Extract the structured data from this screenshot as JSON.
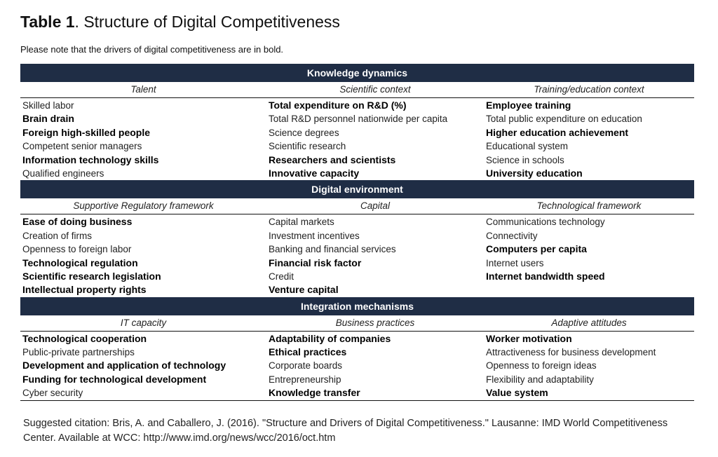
{
  "title": {
    "number": "Table 1",
    "text": ". Structure of Digital Competitiveness"
  },
  "note": "Please note that the drivers of digital competitiveness are in bold.",
  "sections": [
    {
      "heading": "Knowledge dynamics",
      "columns": [
        {
          "header": "Talent",
          "items": [
            {
              "text": "Skilled labor",
              "bold": false
            },
            {
              "text": "Brain drain",
              "bold": true
            },
            {
              "text": "Foreign high-skilled people",
              "bold": true
            },
            {
              "text": "Competent senior managers",
              "bold": false
            },
            {
              "text": "Information technology skills",
              "bold": true
            },
            {
              "text": "Qualified engineers",
              "bold": false
            }
          ]
        },
        {
          "header": "Scientific context",
          "items": [
            {
              "text": "Total expenditure on R&D (%)",
              "bold": true
            },
            {
              "text": "Total R&D personnel nationwide per capita",
              "bold": false
            },
            {
              "text": "Science degrees",
              "bold": false
            },
            {
              "text": "Scientific research",
              "bold": false
            },
            {
              "text": "Researchers and scientists",
              "bold": true
            },
            {
              "text": "Innovative capacity",
              "bold": true
            }
          ]
        },
        {
          "header": "Training/education context",
          "items": [
            {
              "text": "Employee training",
              "bold": true
            },
            {
              "text": "Total public expenditure on education",
              "bold": false
            },
            {
              "text": "Higher education achievement",
              "bold": true
            },
            {
              "text": "Educational system",
              "bold": false
            },
            {
              "text": "Science in schools",
              "bold": false
            },
            {
              "text": "University education",
              "bold": true
            }
          ]
        }
      ]
    },
    {
      "heading": "Digital environment",
      "columns": [
        {
          "header": "Supportive Regulatory framework",
          "items": [
            {
              "text": "Ease of doing business",
              "bold": true
            },
            {
              "text": "Creation of firms",
              "bold": false
            },
            {
              "text": "Openness to foreign labor",
              "bold": false
            },
            {
              "text": "Technological regulation",
              "bold": true
            },
            {
              "text": "Scientific research legislation",
              "bold": true
            },
            {
              "text": "Intellectual property rights",
              "bold": true
            }
          ]
        },
        {
          "header": "Capital",
          "items": [
            {
              "text": "Capital markets",
              "bold": false
            },
            {
              "text": "Investment incentives",
              "bold": false
            },
            {
              "text": "Banking and financial services",
              "bold": false
            },
            {
              "text": "Financial risk factor",
              "bold": true
            },
            {
              "text": "Credit",
              "bold": false
            },
            {
              "text": "Venture capital",
              "bold": true
            }
          ]
        },
        {
          "header": "Technological framework",
          "items": [
            {
              "text": "Communications technology",
              "bold": false
            },
            {
              "text": "Connectivity",
              "bold": false
            },
            {
              "text": "Computers per capita",
              "bold": true
            },
            {
              "text": "Internet users",
              "bold": false
            },
            {
              "text": "Internet bandwidth speed",
              "bold": true
            },
            {
              "text": "",
              "bold": false
            }
          ]
        }
      ]
    },
    {
      "heading": "Integration mechanisms",
      "columns": [
        {
          "header": "IT capacity",
          "items": [
            {
              "text": "Technological cooperation",
              "bold": true
            },
            {
              "text": "Public-private partnerships",
              "bold": false
            },
            {
              "text": "Development and application of technology",
              "bold": true
            },
            {
              "text": "Funding for technological development",
              "bold": true
            },
            {
              "text": "Cyber security",
              "bold": false
            }
          ]
        },
        {
          "header": "Business practices",
          "items": [
            {
              "text": "Adaptability of companies",
              "bold": true
            },
            {
              "text": "Ethical practices",
              "bold": true
            },
            {
              "text": "Corporate boards",
              "bold": false
            },
            {
              "text": "Entrepreneurship",
              "bold": false
            },
            {
              "text": "Knowledge transfer",
              "bold": true
            }
          ]
        },
        {
          "header": "Adaptive attitudes",
          "items": [
            {
              "text": "Worker motivation",
              "bold": true
            },
            {
              "text": "Attractiveness for business development",
              "bold": false
            },
            {
              "text": "Openness to foreign ideas",
              "bold": false
            },
            {
              "text": "Flexibility and adaptability",
              "bold": false
            },
            {
              "text": "Value system",
              "bold": true
            }
          ]
        }
      ]
    }
  ],
  "citation": "Suggested citation: Bris, A. and Caballero, J. (2016). \"Structure and Drivers of Digital Competitiveness.\" Lausanne: IMD World Competitiveness Center. Available at WCC: http://www.imd.org/news/wcc/2016/oct.htm"
}
